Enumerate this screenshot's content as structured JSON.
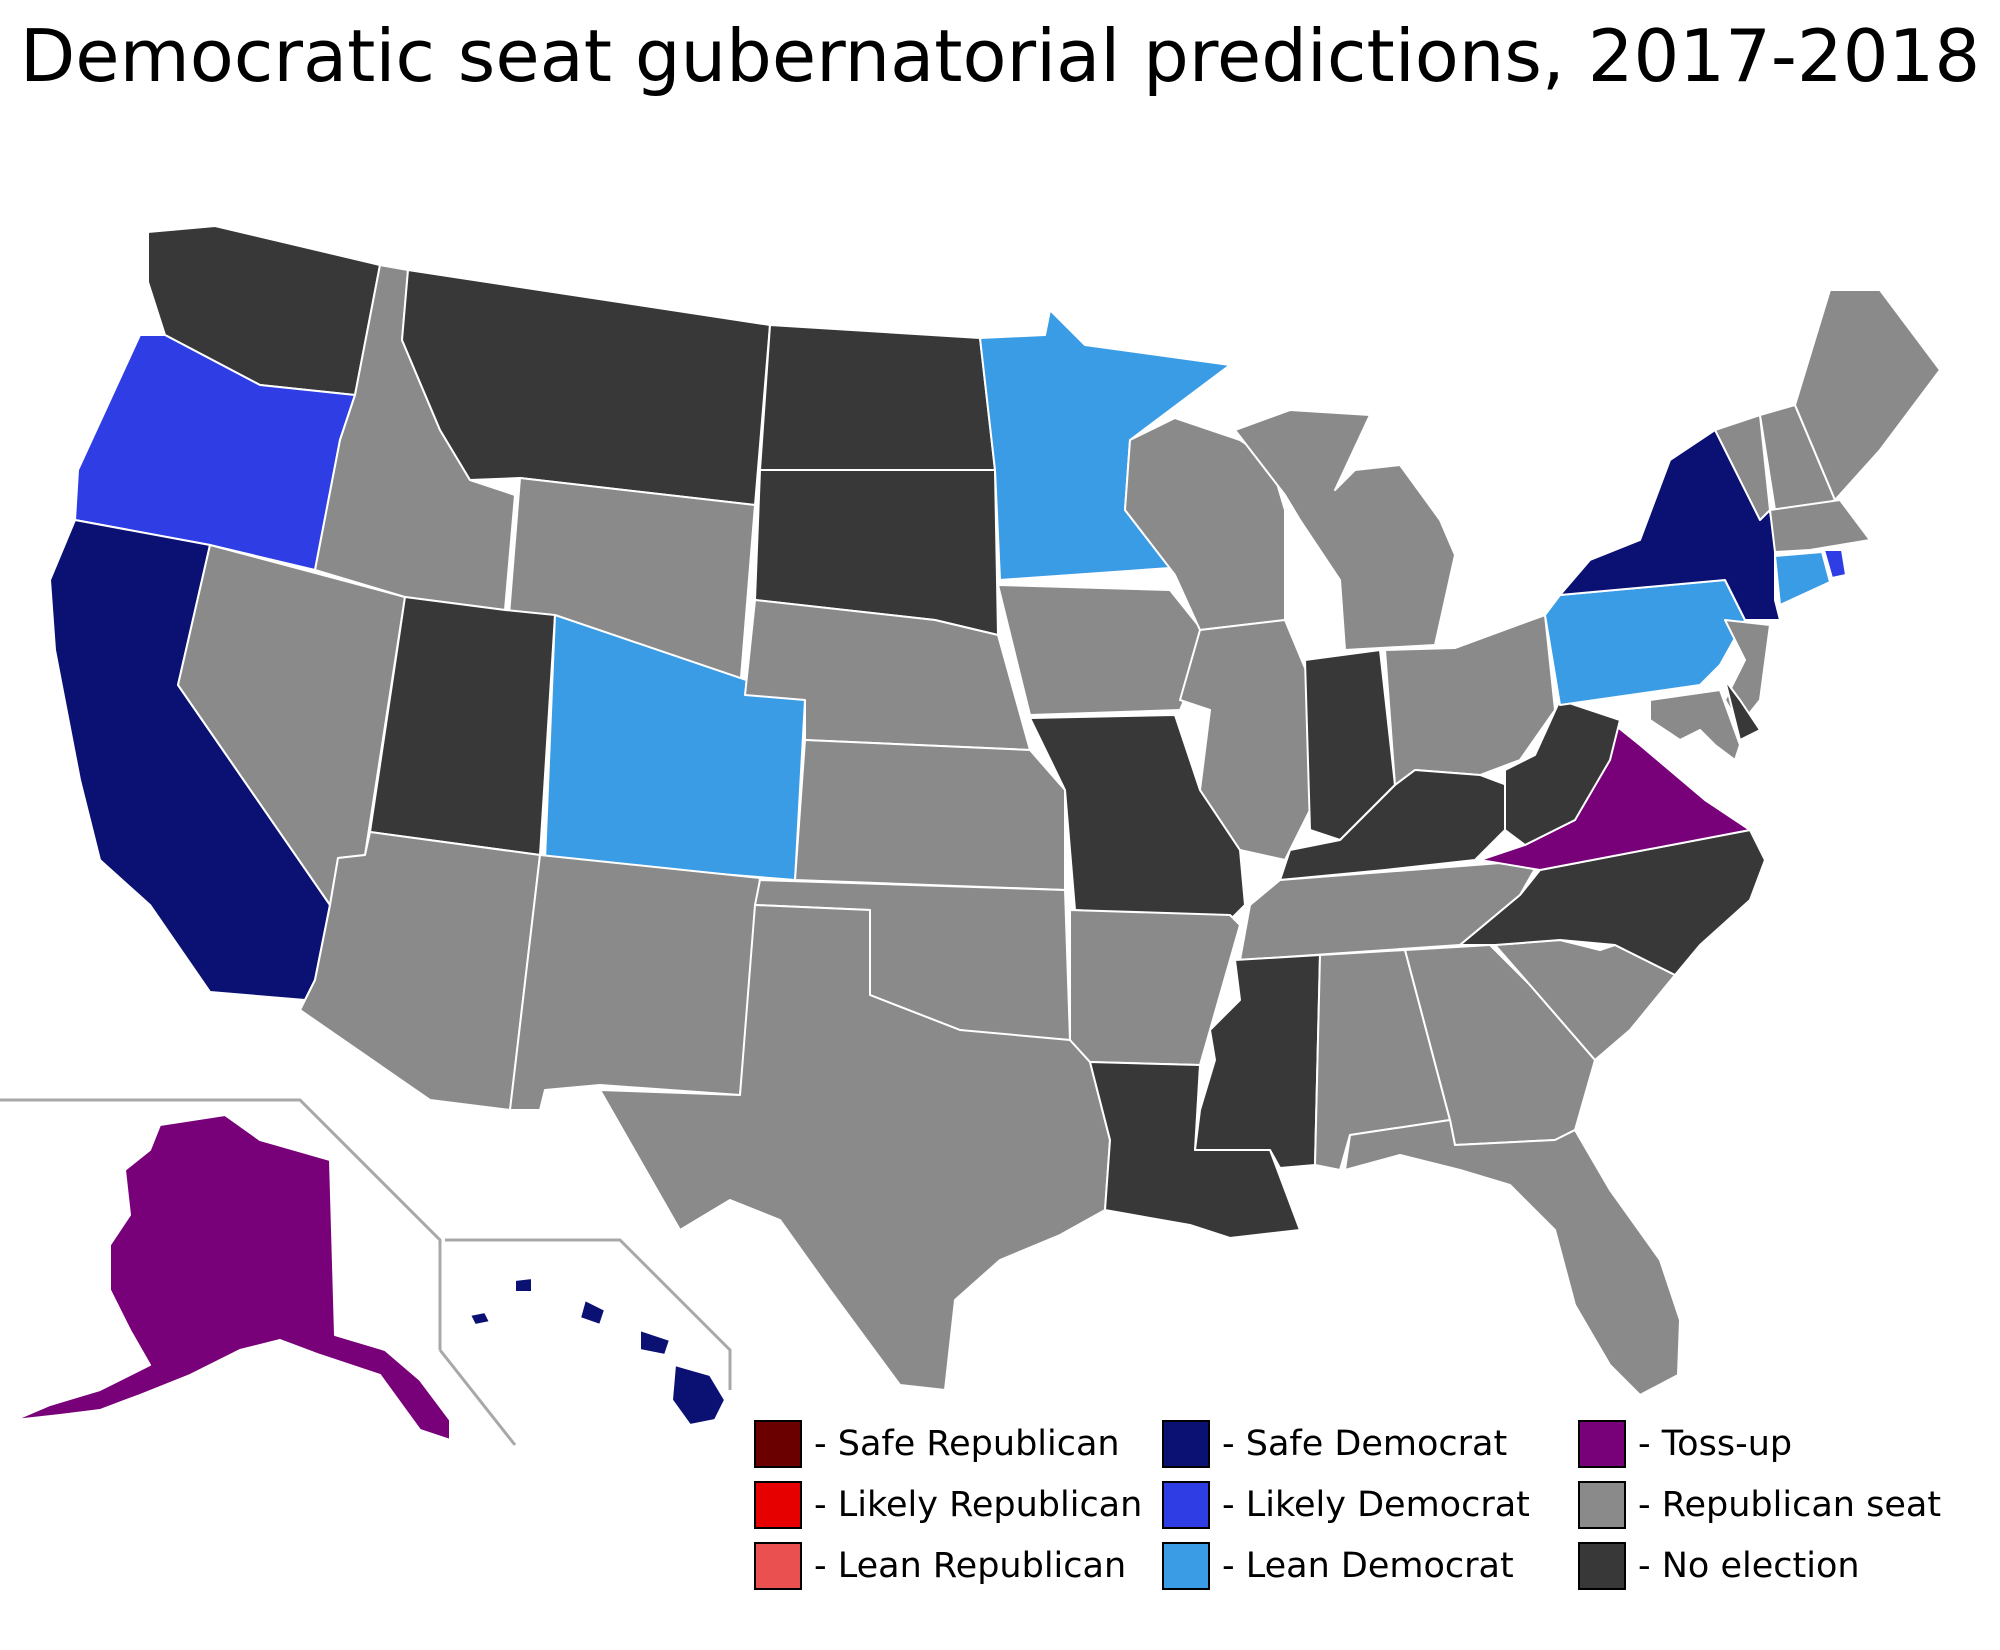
{
  "title": "Democratic seat gubernatorial predictions, 2017-2018",
  "colors": {
    "safe_republican": "#6b0000",
    "likely_republican": "#e60000",
    "lean_republican": "#eb5050",
    "safe_democrat": "#0b1173",
    "likely_democrat": "#2f3ee4",
    "lean_democrat": "#3b9ce6",
    "toss_up": "#780078",
    "republican_seat": "#8a8a8a",
    "no_election": "#383838"
  },
  "legend": [
    {
      "key": "safe_republican",
      "label": "- Safe Republican"
    },
    {
      "key": "likely_republican",
      "label": "- Likely Republican"
    },
    {
      "key": "lean_republican",
      "label": "- Lean Republican"
    },
    {
      "key": "safe_democrat",
      "label": "- Safe Democrat"
    },
    {
      "key": "likely_democrat",
      "label": "- Likely Democrat"
    },
    {
      "key": "lean_democrat",
      "label": "- Lean Democrat"
    },
    {
      "key": "toss_up",
      "label": "- Toss-up"
    },
    {
      "key": "republican_seat",
      "label": "- Republican seat"
    },
    {
      "key": "no_election",
      "label": "- No election"
    }
  ],
  "states": {
    "WA": "no_election",
    "OR": "likely_democrat",
    "CA": "safe_democrat",
    "NV": "republican_seat",
    "ID": "republican_seat",
    "MT": "no_election",
    "WY": "republican_seat",
    "UT": "no_election",
    "CO": "lean_democrat",
    "AZ": "republican_seat",
    "NM": "republican_seat",
    "ND": "no_election",
    "SD": "no_election",
    "NE": "republican_seat",
    "KS": "republican_seat",
    "OK": "republican_seat",
    "TX": "republican_seat",
    "MN": "lean_democrat",
    "IA": "republican_seat",
    "MO": "no_election",
    "AR": "republican_seat",
    "LA": "no_election",
    "WI": "republican_seat",
    "IL": "republican_seat",
    "MI": "republican_seat",
    "IN": "no_election",
    "OH": "republican_seat",
    "KY": "no_election",
    "TN": "republican_seat",
    "MS": "no_election",
    "AL": "republican_seat",
    "GA": "republican_seat",
    "FL": "republican_seat",
    "SC": "republican_seat",
    "NC": "no_election",
    "VA": "toss_up",
    "WV": "no_election",
    "PA": "lean_democrat",
    "NY": "safe_democrat",
    "VT": "republican_seat",
    "NH": "republican_seat",
    "ME": "republican_seat",
    "MA": "republican_seat",
    "RI": "likely_democrat",
    "CT": "lean_democrat",
    "NJ": "republican_seat",
    "DE": "no_election",
    "MD": "republican_seat",
    "AK": "toss_up",
    "HI": "safe_democrat"
  }
}
